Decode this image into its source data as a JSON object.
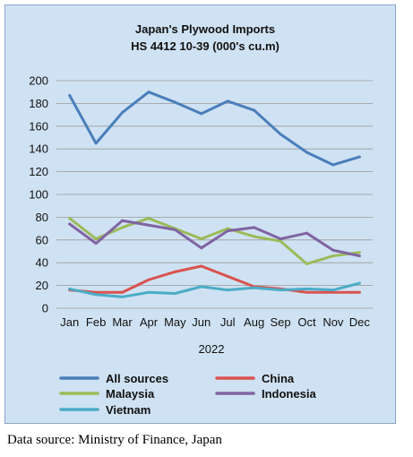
{
  "chart_data": {
    "type": "line",
    "title": "Japan's Plywood Imports",
    "subtitle": "HS 4412 10-39  (000's cu.m)",
    "categories": [
      "Jan",
      "Feb",
      "Mar",
      "Apr",
      "May",
      "Jun",
      "Jul",
      "Aug",
      "Sep",
      "Oct",
      "Nov",
      "Dec"
    ],
    "xlabel": "2022",
    "ylabel": "",
    "ylim": [
      0,
      200
    ],
    "yticks": [
      0,
      20,
      40,
      60,
      80,
      100,
      120,
      140,
      160,
      180,
      200
    ],
    "grid": true,
    "legend_position": "bottom",
    "series": [
      {
        "name": "All sources",
        "color": "#4a7ebb",
        "values": [
          187,
          145,
          172,
          190,
          181,
          171,
          182,
          174,
          153,
          137,
          126,
          133
        ]
      },
      {
        "name": "China",
        "color": "#d9534f",
        "values": [
          16,
          14,
          14,
          25,
          32,
          37,
          28,
          19,
          17,
          14,
          14,
          14
        ]
      },
      {
        "name": "Malaysia",
        "color": "#9bbb59",
        "values": [
          79,
          61,
          71,
          79,
          70,
          61,
          70,
          63,
          59,
          39,
          46,
          49
        ]
      },
      {
        "name": "Indonesia",
        "color": "#8064a2",
        "values": [
          74,
          57,
          77,
          73,
          69,
          53,
          68,
          71,
          61,
          66,
          51,
          46
        ]
      },
      {
        "name": "Vietnam",
        "color": "#4bacc6",
        "values": [
          17,
          12,
          10,
          14,
          13,
          19,
          16,
          18,
          16,
          17,
          16,
          22
        ]
      }
    ]
  },
  "source_note": "Data source: Ministry of Finance, Japan"
}
